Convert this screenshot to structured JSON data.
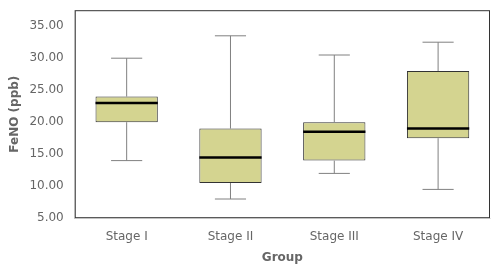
{
  "chart_data": {
    "type": "box",
    "xlabel": "Group",
    "ylabel": "FeNO (ppb)",
    "categories": [
      "Stage I",
      "Stage II",
      "Stage III",
      "Stage IV"
    ],
    "boxes": [
      {
        "whislo": 14.0,
        "q1": 20.0,
        "med": 23.0,
        "q3": 24.0,
        "whishi": 30.0
      },
      {
        "whislo": 8.0,
        "q1": 10.5,
        "med": 14.5,
        "q3": 19.0,
        "whishi": 33.5
      },
      {
        "whislo": 12.0,
        "q1": 14.0,
        "med": 18.5,
        "q3": 20.0,
        "whishi": 30.5
      },
      {
        "whislo": 9.5,
        "q1": 17.5,
        "med": 19.0,
        "q3": 28.0,
        "whishi": 32.5
      }
    ],
    "color": "#d4d490",
    "ylim": [
      5.0,
      37.5
    ],
    "yticks": [
      {
        "value": 5.0,
        "label": "5.00"
      },
      {
        "value": 10.0,
        "label": "10.00"
      },
      {
        "value": 15.0,
        "label": "15.00"
      },
      {
        "value": 20.0,
        "label": "20.00"
      },
      {
        "value": 25.0,
        "label": "25.00"
      },
      {
        "value": 30.0,
        "label": "30.00"
      },
      {
        "value": 35.0,
        "label": "35.00"
      }
    ],
    "grid": false
  }
}
